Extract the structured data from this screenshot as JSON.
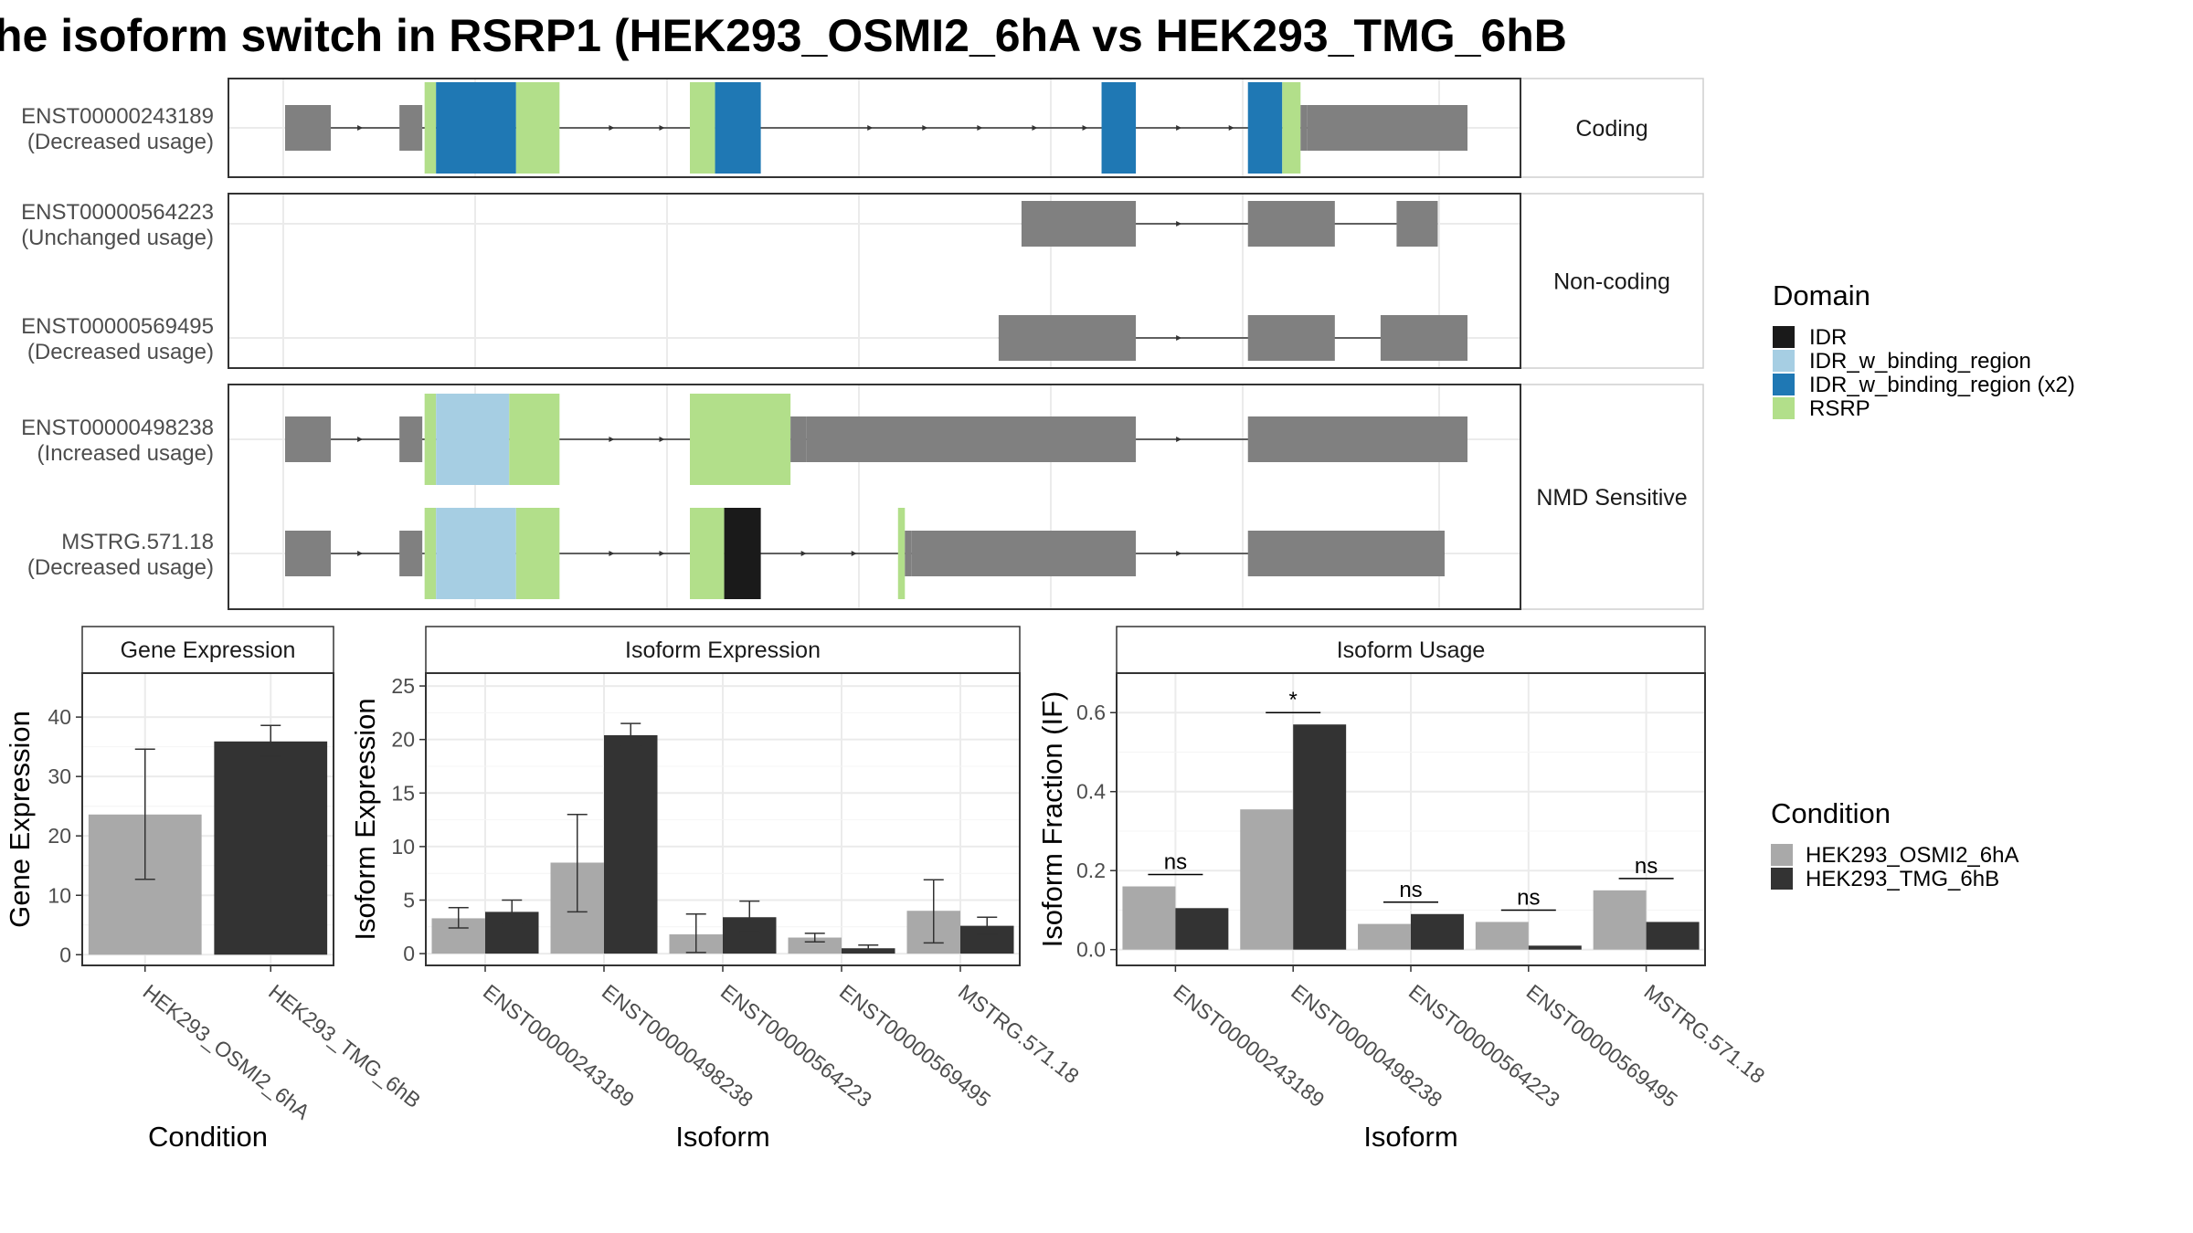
{
  "title": "he isoform switch in RSRP1 (HEK293_OSMI2_6hA vs HEK293_TMG_6hB",
  "colors": {
    "intron": "#808080",
    "IDR": "#1a1a1a",
    "IDR_w_binding_region": "#a6cee3",
    "IDR_w_binding_region (x2)": "#1f78b4",
    "RSRP": "#b2df8a",
    "HEK293_OSMI2_6hA": "#a9a9a9",
    "HEK293_TMG_6hB": "#333333",
    "panel_border": "#333333",
    "grid": "#ebebeb"
  },
  "structure": {
    "strips": [
      "Coding",
      "Non-coding",
      "NMD Sensitive"
    ],
    "transcripts": [
      {
        "id": "ENST00000243189",
        "usage": "(Decreased usage)",
        "group": 0,
        "segments": [
          [
            0,
            2,
            "intron"
          ],
          [
            5,
            6,
            "intron"
          ],
          [
            6.1,
            6.6,
            "RSRP"
          ],
          [
            6.6,
            10.1,
            "IDR_w_binding_region (x2)"
          ],
          [
            10.1,
            12,
            "RSRP"
          ],
          [
            17.7,
            18.8,
            "RSRP"
          ],
          [
            18.8,
            20.8,
            "IDR_w_binding_region (x2)"
          ],
          [
            35.7,
            37.2,
            "IDR_w_binding_region (x2)"
          ],
          [
            42.1,
            43.6,
            "IDR_w_binding_region (x2)"
          ],
          [
            43.6,
            44.4,
            "RSRP"
          ],
          [
            44.4,
            44.7,
            "intron"
          ],
          [
            44.7,
            51.7,
            "intron"
          ]
        ],
        "arrows": [
          3.4,
          5.6,
          14.4,
          16.6,
          25.7,
          28.1,
          30.5,
          32.9,
          35.1,
          39.2,
          41.5
        ]
      },
      {
        "id": "ENST00000564223",
        "usage": "(Unchanged usage)",
        "group": 1,
        "segments": [
          [
            32.2,
            37.2,
            "intron"
          ],
          [
            42.1,
            45.9,
            "intron"
          ],
          [
            48.6,
            50.4,
            "intron"
          ]
        ],
        "arrows": [
          39.2
        ]
      },
      {
        "id": "ENST00000569495",
        "usage": "(Decreased usage)",
        "group": 1,
        "segments": [
          [
            31.2,
            37.2,
            "intron"
          ],
          [
            42.1,
            45.9,
            "intron"
          ],
          [
            47.9,
            51.7,
            "intron"
          ]
        ],
        "arrows": [
          39.2
        ]
      },
      {
        "id": "ENST00000498238",
        "usage": "(Increased usage)",
        "group": 2,
        "segments": [
          [
            0,
            2,
            "intron"
          ],
          [
            5,
            6,
            "intron"
          ],
          [
            6.1,
            6.6,
            "RSRP"
          ],
          [
            6.6,
            9.8,
            "IDR_w_binding_region"
          ],
          [
            9.8,
            12,
            "RSRP"
          ],
          [
            17.7,
            22.1,
            "RSRP"
          ],
          [
            22.1,
            22.8,
            "intron"
          ],
          [
            22.8,
            37.2,
            "intron"
          ],
          [
            42.1,
            51.7,
            "intron"
          ]
        ],
        "arrows": [
          3.4,
          5.6,
          14.4,
          16.6,
          39.2
        ]
      },
      {
        "id": "MSTRG.571.18",
        "usage": "(Decreased usage)",
        "group": 2,
        "segments": [
          [
            0,
            2,
            "intron"
          ],
          [
            5,
            6,
            "intron"
          ],
          [
            6.1,
            6.6,
            "RSRP"
          ],
          [
            6.6,
            10.1,
            "IDR_w_binding_region"
          ],
          [
            10.1,
            12,
            "RSRP"
          ],
          [
            17.7,
            19.2,
            "RSRP"
          ],
          [
            19.2,
            20.8,
            "IDR"
          ],
          [
            26.8,
            27.1,
            "RSRP"
          ],
          [
            27.1,
            27.4,
            "intron"
          ],
          [
            27.4,
            37.2,
            "intron"
          ],
          [
            42.1,
            50.7,
            "intron"
          ]
        ],
        "arrows": [
          3.4,
          5.6,
          14.4,
          16.6,
          22.8,
          25,
          39.2
        ]
      }
    ]
  },
  "legend_domain": {
    "title": "Domain",
    "items": [
      "IDR",
      "IDR_w_binding_region",
      "IDR_w_binding_region (x2)",
      "RSRP"
    ]
  },
  "legend_condition": {
    "title": "Condition",
    "items": [
      "HEK293_OSMI2_6hA",
      "HEK293_TMG_6hB"
    ]
  },
  "chart_data": [
    {
      "type": "bar",
      "title": "Gene Expression",
      "xlabel": "Condition",
      "ylabel": "Gene Expression",
      "categories": [
        "HEK293_OSMI2_6hA",
        "HEK293_TMG_6hB"
      ],
      "values": [
        23.6,
        35.9
      ],
      "error_low": [
        12.7,
        33.4
      ],
      "error_high": [
        34.6,
        38.6
      ],
      "ylim": [
        -1.8,
        47.4
      ],
      "yticks": [
        0,
        10,
        20,
        30,
        40
      ],
      "tick_labels": [
        "0",
        "10",
        "20",
        "30",
        "40"
      ]
    },
    {
      "type": "bar",
      "title": "Isoform Expression",
      "xlabel": "Isoform",
      "ylabel": "Isoform Expression",
      "categories": [
        "ENST00000243189",
        "ENST00000498238",
        "ENST00000564223",
        "ENST00000569495",
        "MSTRG.571.18"
      ],
      "ylim": [
        -1.1,
        26.2
      ],
      "yticks": [
        0,
        5,
        10,
        15,
        20,
        25
      ],
      "tick_labels": [
        "0",
        "5",
        "10",
        "15",
        "20",
        "25"
      ],
      "series": [
        {
          "name": "HEK293_OSMI2_6hA",
          "values": [
            3.3,
            8.5,
            1.8,
            1.5,
            4.0
          ],
          "error_low": [
            2.4,
            3.9,
            0.1,
            1.1,
            1.0
          ],
          "error_high": [
            4.3,
            13.0,
            3.7,
            1.9,
            6.9
          ]
        },
        {
          "name": "HEK293_TMG_6hB",
          "values": [
            3.9,
            20.4,
            3.4,
            0.5,
            2.6
          ],
          "error_low": [
            2.8,
            19.4,
            2.0,
            0.2,
            1.8
          ],
          "error_high": [
            5.0,
            21.5,
            4.9,
            0.8,
            3.4
          ]
        }
      ]
    },
    {
      "type": "bar",
      "title": "Isoform Usage",
      "xlabel": "Isoform",
      "ylabel": "Isoform Fraction (IF)",
      "categories": [
        "ENST00000243189",
        "ENST00000498238",
        "ENST00000564223",
        "ENST00000569495",
        "MSTRG.571.18"
      ],
      "ylim": [
        -0.04,
        0.7
      ],
      "yticks": [
        0,
        0.2,
        0.4,
        0.6
      ],
      "tick_labels": [
        "0.0",
        "0.2",
        "0.4",
        "0.6"
      ],
      "series": [
        {
          "name": "HEK293_OSMI2_6hA",
          "values": [
            0.16,
            0.355,
            0.065,
            0.07,
            0.15
          ]
        },
        {
          "name": "HEK293_TMG_6hB",
          "values": [
            0.105,
            0.57,
            0.09,
            0.01,
            0.07
          ]
        }
      ],
      "significance": [
        {
          "label": "ns",
          "level": 0.19
        },
        {
          "label": "*",
          "level": 0.6
        },
        {
          "label": "ns",
          "level": 0.12
        },
        {
          "label": "ns",
          "level": 0.1
        },
        {
          "label": "ns",
          "level": 0.18
        }
      ]
    }
  ]
}
